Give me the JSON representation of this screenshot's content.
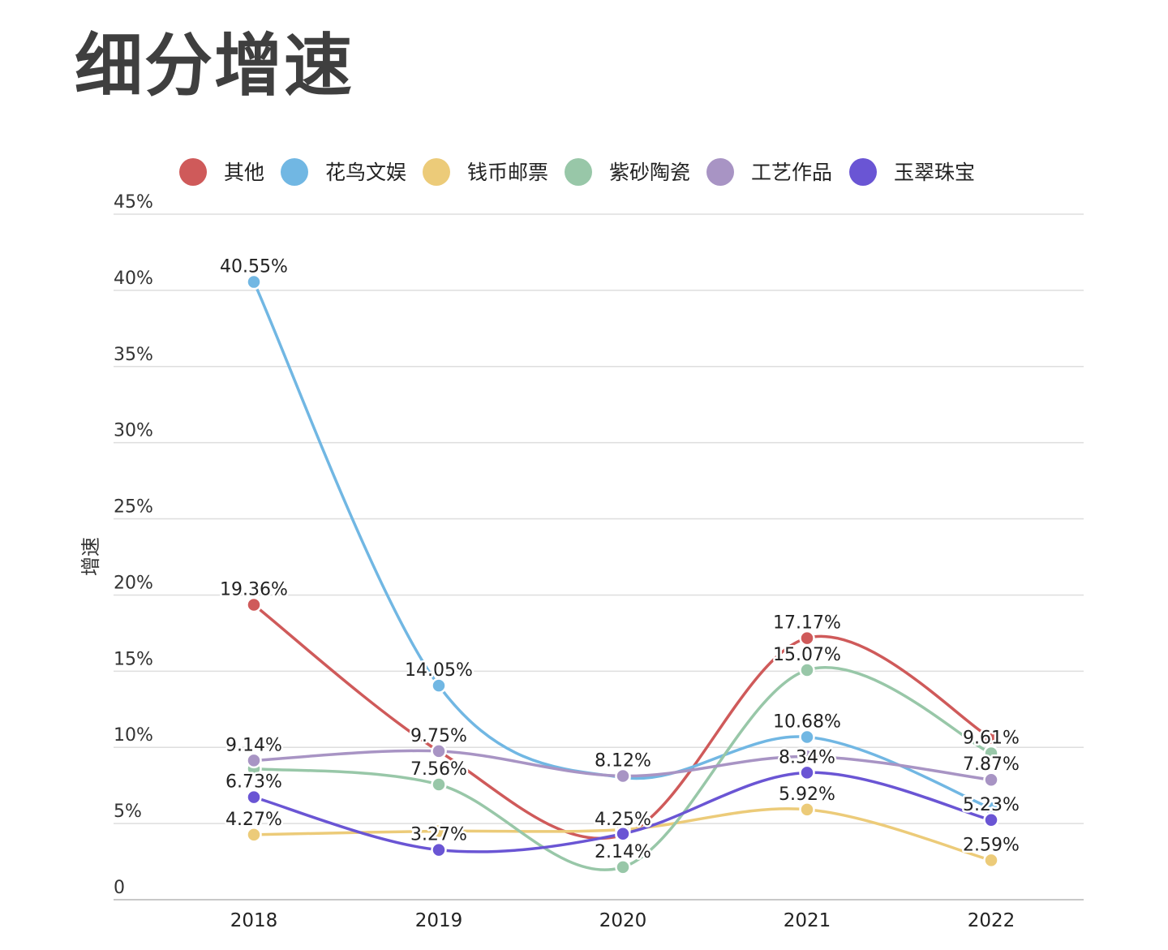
{
  "title": "细分增速",
  "chart_data": {
    "type": "line",
    "title": "细分增速",
    "xlabel": "",
    "ylabel": "增速",
    "categories": [
      "2018",
      "2019",
      "2020",
      "2021",
      "2022"
    ],
    "ylim": [
      0,
      45
    ],
    "yticks": [
      0,
      5,
      10,
      15,
      20,
      25,
      30,
      35,
      40,
      45
    ],
    "ytick_labels": [
      "0",
      "5%",
      "10%",
      "15%",
      "20%",
      "25%",
      "30%",
      "35%",
      "40%",
      "45%"
    ],
    "grid": true,
    "legend_position": "top",
    "series": [
      {
        "name": "其他",
        "color": "#cf5a5a",
        "values": [
          19.36,
          9.75,
          4.25,
          17.17,
          10.61
        ],
        "labels": [
          "19.36%",
          "",
          "4.25%",
          "17.17%",
          ""
        ]
      },
      {
        "name": "花鸟文娱",
        "color": "#71b7e3",
        "values": [
          40.55,
          14.05,
          8.02,
          10.68,
          6.0
        ],
        "labels": [
          "40.55%",
          "14.05%",
          "",
          "10.68%",
          ""
        ]
      },
      {
        "name": "钱币邮票",
        "color": "#eccb79",
        "values": [
          4.27,
          4.5,
          4.6,
          5.92,
          2.59
        ],
        "labels": [
          "4.27%",
          "",
          "",
          "5.92%",
          "2.59%"
        ]
      },
      {
        "name": "紫砂陶瓷",
        "color": "#98c7a8",
        "values": [
          8.6,
          7.56,
          2.14,
          15.07,
          9.61
        ],
        "labels": [
          "",
          "7.56%",
          "2.14%",
          "15.07%",
          "9.61%"
        ]
      },
      {
        "name": "工艺作品",
        "color": "#a894c4",
        "values": [
          9.14,
          9.75,
          8.12,
          9.4,
          7.87
        ],
        "labels": [
          "9.14%",
          "9.75%",
          "8.12%",
          "",
          "7.87%"
        ]
      },
      {
        "name": "玉翠珠宝",
        "color": "#6a55d4",
        "values": [
          6.73,
          3.27,
          4.33,
          8.34,
          5.23
        ],
        "labels": [
          "6.73%",
          "3.27%",
          "",
          "8.34%",
          "5.23%"
        ]
      }
    ]
  }
}
